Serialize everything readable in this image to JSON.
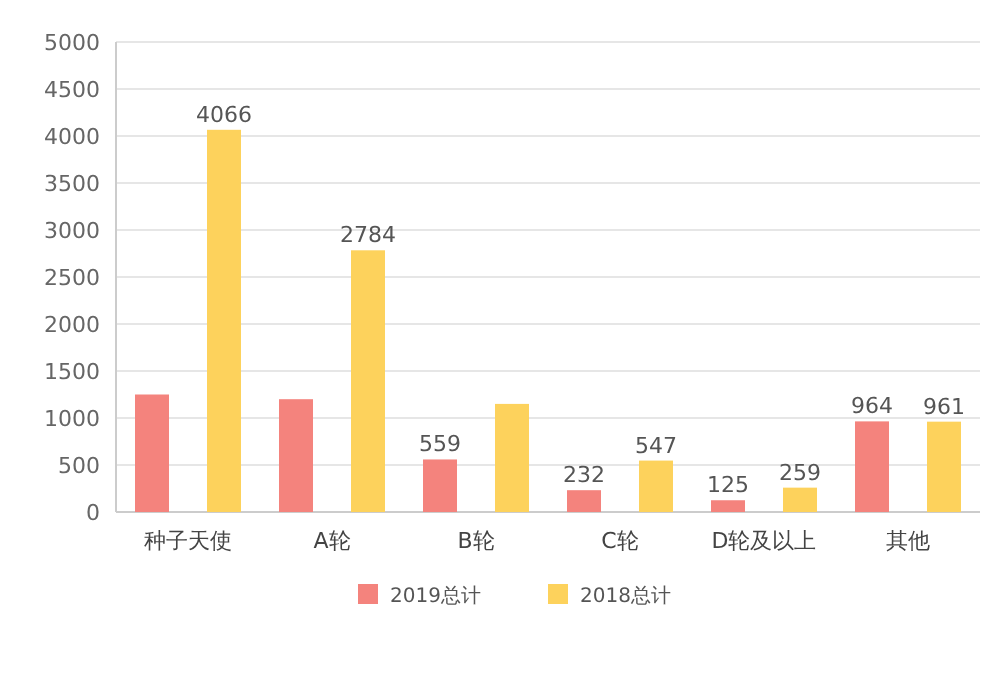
{
  "chart_data": {
    "type": "bar",
    "categories": [
      "种子天使",
      "A轮",
      "B轮",
      "C轮",
      "D轮及以上",
      "其他"
    ],
    "series": [
      {
        "name": "2019总计",
        "color": "#f4837d",
        "values": [
          1250,
          1200,
          559,
          232,
          125,
          964
        ],
        "value_labels": [
          null,
          null,
          "559",
          "232",
          "125",
          "964"
        ]
      },
      {
        "name": "2018总计",
        "color": "#fdd25c",
        "values": [
          4066,
          2784,
          1150,
          547,
          259,
          961
        ],
        "value_labels": [
          "4066",
          "2784",
          null,
          "547",
          "259",
          "961"
        ]
      }
    ],
    "ylim": [
      0,
      5000
    ],
    "yticks": [
      0,
      500,
      1000,
      1500,
      2000,
      2500,
      3000,
      3500,
      4000,
      4500,
      5000
    ],
    "grid": "y",
    "legend": "bottom"
  }
}
